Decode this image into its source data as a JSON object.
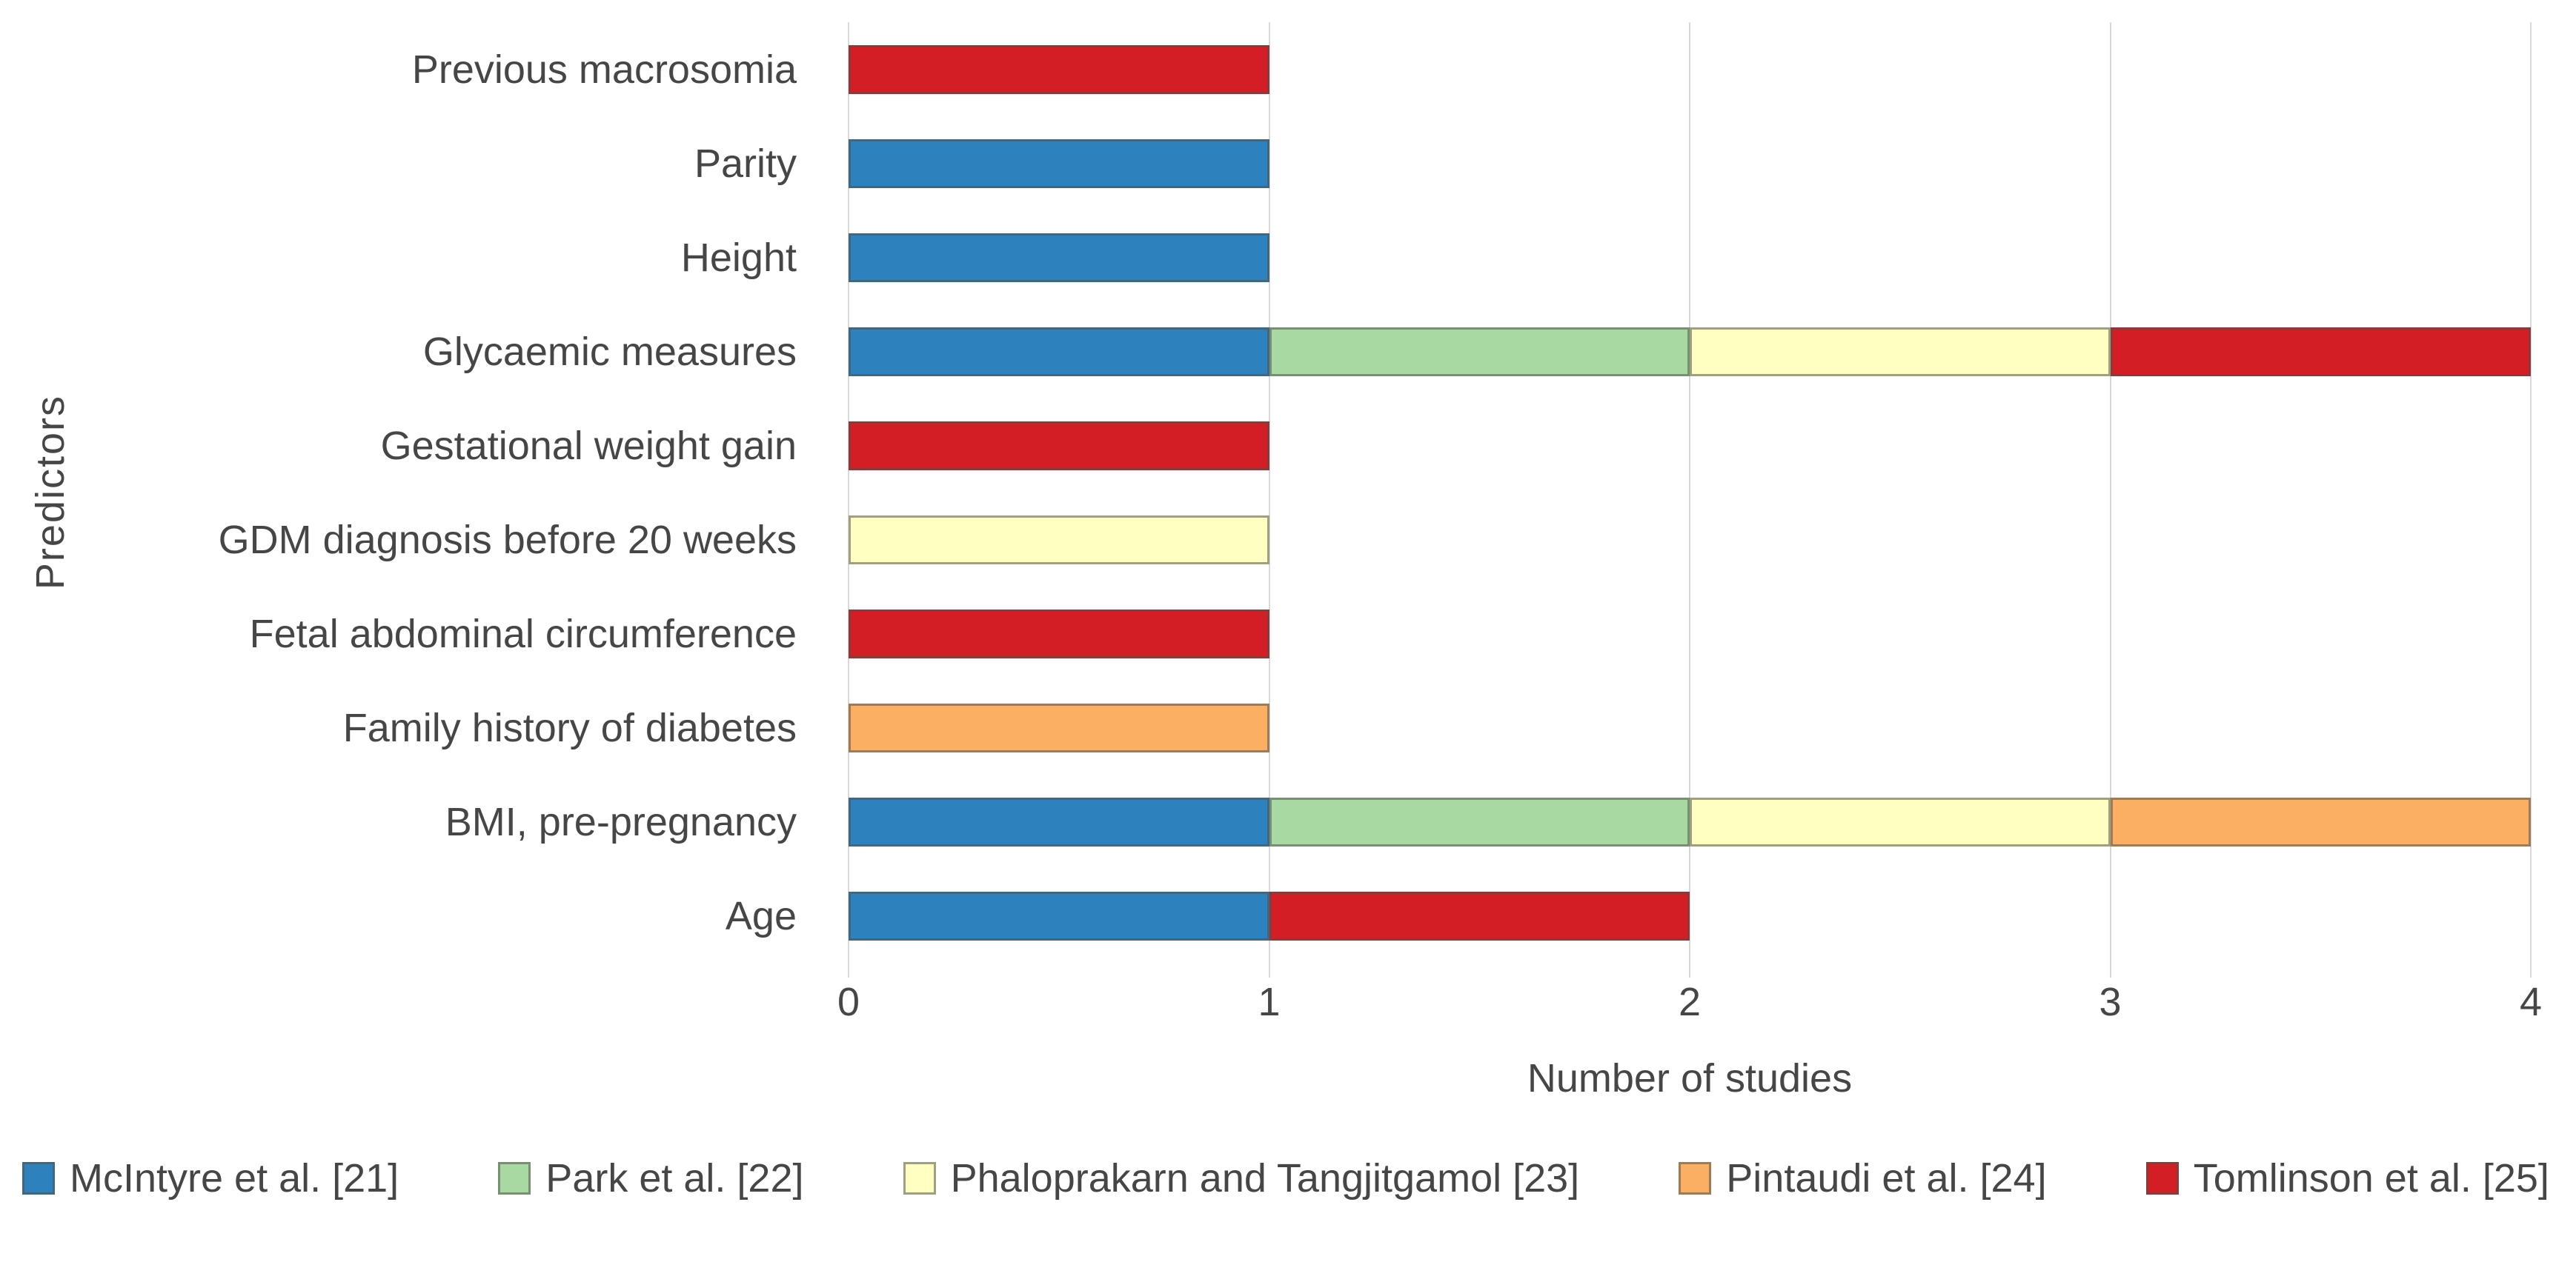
{
  "figure": {
    "background_color": "#ffffff",
    "text_color": "#464646",
    "gridline_color": "#d9d9d9",
    "bar_border_color": "rgba(80,82,74,0.55)"
  },
  "chart_data": {
    "type": "bar",
    "orientation": "horizontal",
    "stacked": true,
    "title": "",
    "xlabel": "Number of studies",
    "ylabel": "Predictors",
    "xlim": [
      0,
      4
    ],
    "xticks": [
      0,
      1,
      2,
      3,
      4
    ],
    "grid": true,
    "legend_position": "bottom",
    "categories": [
      "Previous macrosomia",
      "Parity",
      "Height",
      "Glycaemic measures",
      "Gestational weight gain",
      "GDM diagnosis before 20 weeks",
      "Fetal abdominal circumference",
      "Family history of diabetes",
      "BMI, pre-pregnancy",
      "Age"
    ],
    "series": [
      {
        "name": "McIntyre et al. [21]",
        "color": "#2D82BE",
        "values": [
          0,
          1,
          1,
          1,
          0,
          0,
          0,
          0,
          1,
          1
        ]
      },
      {
        "name": "Park et al. [22]",
        "color": "#A9D9A2",
        "values": [
          0,
          0,
          0,
          1,
          0,
          0,
          0,
          0,
          1,
          0
        ]
      },
      {
        "name": "Phaloprakarn and Tangjitgamol [23]",
        "color": "#FFFFC2",
        "values": [
          0,
          0,
          0,
          1,
          0,
          1,
          0,
          0,
          1,
          0
        ]
      },
      {
        "name": "Pintaudi et al. [24]",
        "color": "#FBAF62",
        "values": [
          0,
          0,
          0,
          0,
          0,
          0,
          0,
          1,
          1,
          0
        ]
      },
      {
        "name": "Tomlinson et al. [25]",
        "color": "#D21E24",
        "values": [
          1,
          0,
          0,
          1,
          1,
          0,
          1,
          0,
          0,
          1
        ]
      }
    ]
  }
}
